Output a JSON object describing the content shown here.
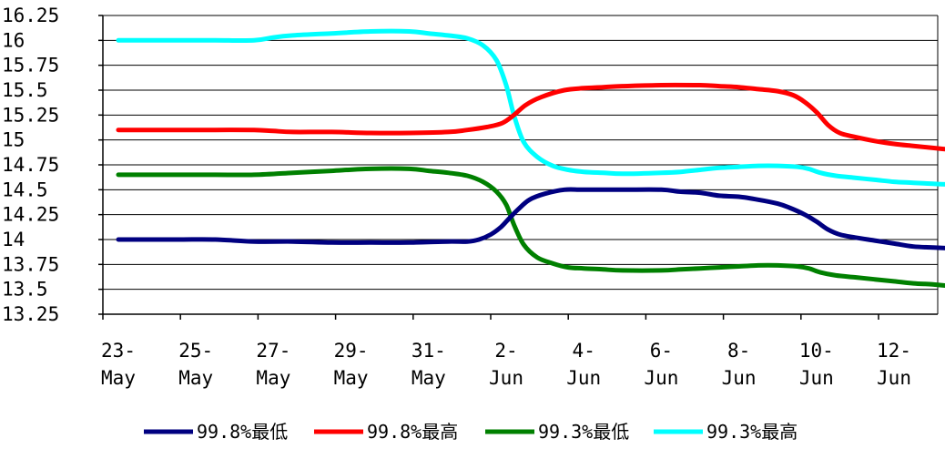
{
  "chart_data": {
    "type": "line",
    "title": "",
    "xlabel": "",
    "ylabel": "",
    "ylim": [
      13.25,
      16.25
    ],
    "yticks": [
      16.25,
      16,
      15.75,
      15.5,
      15.25,
      15,
      14.75,
      14.5,
      14.25,
      14,
      13.75,
      13.5,
      13.25
    ],
    "ytick_labels": [
      "16.25",
      "16",
      "15.75",
      "15.5",
      "15.25",
      "15",
      "14.75",
      "14.5",
      "14.25",
      "14",
      "13.75",
      "13.5",
      "13.25"
    ],
    "grid": "horizontal",
    "legend_position": "bottom",
    "x_tick_labels": [
      {
        "day": "23-",
        "month": "May"
      },
      {
        "day": "25-",
        "month": "May"
      },
      {
        "day": "27-",
        "month": "May"
      },
      {
        "day": "29-",
        "month": "May"
      },
      {
        "day": "31-",
        "month": "May"
      },
      {
        "day": "2-",
        "month": "Jun"
      },
      {
        "day": "4-",
        "month": "Jun"
      },
      {
        "day": "6-",
        "month": "Jun"
      },
      {
        "day": "8-",
        "month": "Jun"
      },
      {
        "day": "10-",
        "month": "Jun"
      },
      {
        "day": "12-",
        "month": "Jun"
      }
    ],
    "series": [
      {
        "name": "99.8%最低",
        "color": "#000080",
        "points": [
          [
            0,
            14.0
          ],
          [
            1.5,
            14.0
          ],
          [
            2.5,
            14.0
          ],
          [
            3.5,
            13.98
          ],
          [
            4.5,
            13.98
          ],
          [
            5.5,
            13.97
          ],
          [
            6.5,
            13.97
          ],
          [
            7.5,
            13.97
          ],
          [
            8.5,
            13.98
          ],
          [
            9,
            13.98
          ],
          [
            9.3,
            14.0
          ],
          [
            9.6,
            14.05
          ],
          [
            9.85,
            14.12
          ],
          [
            10.05,
            14.2
          ],
          [
            10.3,
            14.3
          ],
          [
            10.6,
            14.4
          ],
          [
            11.0,
            14.46
          ],
          [
            11.5,
            14.5
          ],
          [
            12.0,
            14.5
          ],
          [
            13.0,
            14.5
          ],
          [
            14.0,
            14.5
          ],
          [
            14.5,
            14.48
          ],
          [
            15.0,
            14.47
          ],
          [
            15.5,
            14.44
          ],
          [
            16.0,
            14.43
          ],
          [
            16.5,
            14.4
          ],
          [
            17.0,
            14.36
          ],
          [
            17.3,
            14.32
          ],
          [
            17.7,
            14.25
          ],
          [
            18.0,
            14.18
          ],
          [
            18.3,
            14.1
          ],
          [
            18.6,
            14.05
          ],
          [
            19.0,
            14.02
          ],
          [
            19.5,
            13.99
          ],
          [
            20.0,
            13.96
          ],
          [
            20.5,
            13.93
          ],
          [
            21.0,
            13.92
          ],
          [
            21.5,
            13.91
          ],
          [
            22.0,
            13.9
          ],
          [
            22.5,
            13.89
          ],
          [
            23.0,
            13.88
          ],
          [
            23.5,
            13.87
          ],
          [
            24.0,
            13.86
          ],
          [
            24.5,
            13.84
          ],
          [
            25.0,
            13.82
          ],
          [
            25.5,
            13.81
          ],
          [
            26.1,
            13.8
          ]
        ]
      },
      {
        "name": "99.8%最高",
        "color": "#ff0000",
        "points": [
          [
            0,
            15.1
          ],
          [
            1.5,
            15.1
          ],
          [
            2.5,
            15.1
          ],
          [
            3.5,
            15.1
          ],
          [
            4.0,
            15.09
          ],
          [
            4.5,
            15.08
          ],
          [
            5.5,
            15.08
          ],
          [
            6.5,
            15.07
          ],
          [
            7.5,
            15.07
          ],
          [
            8.5,
            15.08
          ],
          [
            9.0,
            15.1
          ],
          [
            9.5,
            15.13
          ],
          [
            9.9,
            15.17
          ],
          [
            10.2,
            15.25
          ],
          [
            10.5,
            15.35
          ],
          [
            10.9,
            15.43
          ],
          [
            11.5,
            15.5
          ],
          [
            12.0,
            15.52
          ],
          [
            12.5,
            15.53
          ],
          [
            13.0,
            15.54
          ],
          [
            14.0,
            15.55
          ],
          [
            15.0,
            15.55
          ],
          [
            15.5,
            15.54
          ],
          [
            16.0,
            15.53
          ],
          [
            16.5,
            15.51
          ],
          [
            17.0,
            15.49
          ],
          [
            17.4,
            15.45
          ],
          [
            17.7,
            15.38
          ],
          [
            18.0,
            15.28
          ],
          [
            18.3,
            15.15
          ],
          [
            18.6,
            15.07
          ],
          [
            19.0,
            15.03
          ],
          [
            19.5,
            14.99
          ],
          [
            20.0,
            14.96
          ],
          [
            20.5,
            14.94
          ],
          [
            21.0,
            14.92
          ],
          [
            21.5,
            14.9
          ],
          [
            22.0,
            14.88
          ],
          [
            22.5,
            14.86
          ],
          [
            23.0,
            14.85
          ],
          [
            23.5,
            14.84
          ],
          [
            24.0,
            14.83
          ],
          [
            24.5,
            14.82
          ],
          [
            25.0,
            14.81
          ],
          [
            25.5,
            14.8
          ],
          [
            26.1,
            14.79
          ]
        ]
      },
      {
        "name": "99.3%最低",
        "color": "#008000",
        "points": [
          [
            0,
            14.65
          ],
          [
            1.5,
            14.65
          ],
          [
            2.5,
            14.65
          ],
          [
            3.5,
            14.65
          ],
          [
            4.5,
            14.67
          ],
          [
            5.5,
            14.69
          ],
          [
            6.5,
            14.71
          ],
          [
            7.5,
            14.71
          ],
          [
            8.0,
            14.69
          ],
          [
            8.5,
            14.67
          ],
          [
            9.0,
            14.64
          ],
          [
            9.4,
            14.58
          ],
          [
            9.75,
            14.48
          ],
          [
            10.0,
            14.35
          ],
          [
            10.2,
            14.15
          ],
          [
            10.45,
            13.95
          ],
          [
            10.8,
            13.82
          ],
          [
            11.2,
            13.76
          ],
          [
            11.6,
            13.72
          ],
          [
            12.0,
            13.71
          ],
          [
            12.5,
            13.7
          ],
          [
            13.0,
            13.69
          ],
          [
            14.0,
            13.69
          ],
          [
            14.5,
            13.7
          ],
          [
            15.0,
            13.71
          ],
          [
            15.5,
            13.72
          ],
          [
            16.0,
            13.73
          ],
          [
            16.5,
            13.74
          ],
          [
            17.0,
            13.74
          ],
          [
            17.5,
            13.73
          ],
          [
            17.8,
            13.71
          ],
          [
            18.1,
            13.67
          ],
          [
            18.5,
            13.64
          ],
          [
            19.0,
            13.62
          ],
          [
            19.5,
            13.6
          ],
          [
            20.0,
            13.58
          ],
          [
            20.5,
            13.56
          ],
          [
            21.0,
            13.55
          ],
          [
            21.5,
            13.53
          ],
          [
            22.0,
            13.51
          ],
          [
            22.5,
            13.49
          ],
          [
            23.0,
            13.47
          ],
          [
            23.5,
            13.46
          ],
          [
            24.0,
            13.45
          ],
          [
            24.5,
            13.44
          ],
          [
            25.0,
            13.43
          ],
          [
            25.5,
            13.41
          ],
          [
            26.1,
            13.38
          ]
        ]
      },
      {
        "name": "99.3%最高",
        "color": "#00ffff",
        "points": [
          [
            0,
            16.0
          ],
          [
            1.5,
            16.0
          ],
          [
            2.5,
            16.0
          ],
          [
            3.5,
            16.0
          ],
          [
            4.0,
            16.03
          ],
          [
            4.5,
            16.05
          ],
          [
            5.5,
            16.07
          ],
          [
            6.5,
            16.09
          ],
          [
            7.5,
            16.09
          ],
          [
            8.0,
            16.07
          ],
          [
            8.5,
            16.05
          ],
          [
            9.0,
            16.02
          ],
          [
            9.4,
            15.95
          ],
          [
            9.75,
            15.8
          ],
          [
            10.0,
            15.55
          ],
          [
            10.2,
            15.25
          ],
          [
            10.45,
            14.98
          ],
          [
            10.8,
            14.83
          ],
          [
            11.2,
            14.74
          ],
          [
            11.6,
            14.7
          ],
          [
            12.0,
            14.68
          ],
          [
            12.5,
            14.67
          ],
          [
            13.0,
            14.66
          ],
          [
            14.0,
            14.67
          ],
          [
            14.5,
            14.68
          ],
          [
            15.0,
            14.7
          ],
          [
            15.5,
            14.72
          ],
          [
            16.0,
            14.73
          ],
          [
            16.5,
            14.74
          ],
          [
            17.0,
            14.74
          ],
          [
            17.5,
            14.73
          ],
          [
            17.8,
            14.71
          ],
          [
            18.1,
            14.67
          ],
          [
            18.5,
            14.64
          ],
          [
            19.0,
            14.62
          ],
          [
            19.5,
            14.6
          ],
          [
            20.0,
            14.58
          ],
          [
            20.5,
            14.57
          ],
          [
            21.0,
            14.56
          ],
          [
            21.5,
            14.55
          ],
          [
            22.0,
            14.53
          ],
          [
            22.5,
            14.52
          ],
          [
            23.0,
            14.5
          ],
          [
            23.5,
            14.49
          ],
          [
            24.0,
            14.48
          ],
          [
            24.5,
            14.47
          ],
          [
            25.0,
            14.46
          ],
          [
            25.5,
            14.45
          ],
          [
            26.1,
            14.44
          ]
        ]
      }
    ]
  }
}
